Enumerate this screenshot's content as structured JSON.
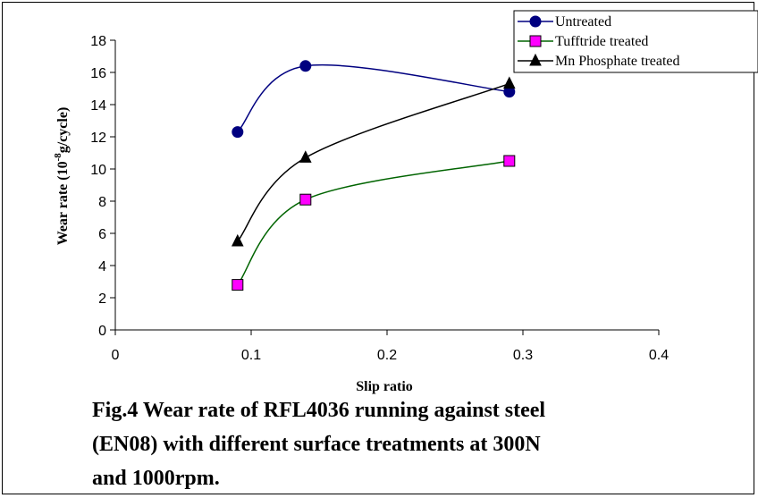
{
  "chart_data": {
    "type": "line",
    "xlabel": "Slip ratio",
    "ylabel_main": "Wear rate (10",
    "ylabel_exp": "-8",
    "ylabel_tail": "g/cycle)",
    "xlim": [
      0,
      0.4
    ],
    "ylim": [
      0,
      18
    ],
    "xticks": [
      "0",
      "0.1",
      "0.2",
      "0.3",
      "0.4"
    ],
    "yticks": [
      "0",
      "2",
      "4",
      "6",
      "8",
      "10",
      "12",
      "14",
      "16",
      "18"
    ],
    "x": [
      0.09,
      0.14,
      0.29
    ],
    "series": [
      {
        "name": "Untreated",
        "values": [
          12.3,
          16.4,
          14.8
        ],
        "color": "#000080",
        "marker": "circle",
        "marker_color": "#000080"
      },
      {
        "name": "Tufftride treated",
        "values": [
          2.8,
          8.1,
          10.5
        ],
        "color": "#006400",
        "marker": "square",
        "marker_color": "#ff00ff"
      },
      {
        "name": "Mn Phosphate treated",
        "values": [
          5.5,
          10.7,
          15.3
        ],
        "color": "#000000",
        "marker": "triangle",
        "marker_color": "#000000"
      }
    ],
    "legend_position": "top-right",
    "grid": false
  },
  "caption": {
    "line1": "Fig.4 Wear rate of RFL4036 running against steel",
    "line2": "(EN08) with different surface treatments at 300N",
    "line3": "and 1000rpm."
  }
}
